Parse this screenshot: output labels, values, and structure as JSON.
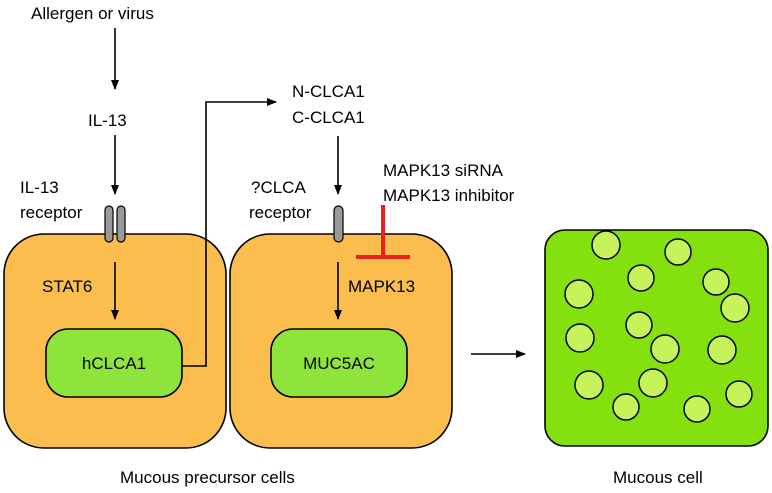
{
  "labels": {
    "trigger": "Allergen or virus",
    "il13": "IL-13",
    "il13_receptor_line1": "IL-13",
    "il13_receptor_line2": "receptor",
    "stat6": "STAT6",
    "hclca1": "hCLCA1",
    "nclca1": "N-CLCA1",
    "cclca1": "C-CLCA1",
    "clca_receptor_line1": "?CLCA",
    "clca_receptor_line2": "receptor",
    "mapk13_sirna": "MAPK13 siRNA",
    "mapk13_inhibitor": "MAPK13 inhibitor",
    "mapk13": "MAPK13",
    "muc5ac": "MUC5AC",
    "precursor_caption": "Mucous precursor cells",
    "mucous_caption": "Mucous cell"
  },
  "colors": {
    "precursor_cell_fill": "#fbbd4e",
    "nucleus_fill": "#8ee43a",
    "mucous_cell_fill": "#84e00f",
    "granule_fill": "#c6f25a",
    "receptor_fill": "#9a9a9a",
    "inhibition_color": "#e8231c"
  }
}
